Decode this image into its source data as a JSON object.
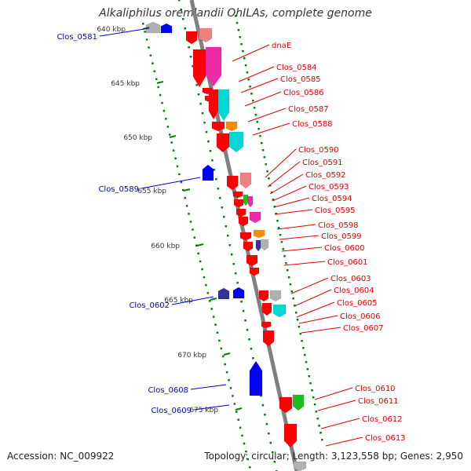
{
  "title": "Alkaliphilus oremlandii OhILAs, complete genome",
  "accession": {
    "label": "Accession:",
    "value": "NC_009922"
  },
  "topology": {
    "label": "Topology:",
    "value": "circular;"
  },
  "length": {
    "label": "Length:",
    "value": "3,123,558 bp;"
  },
  "genes": {
    "label": "Genes:",
    "value": "2,950"
  },
  "colors": {
    "backbone": "#808080",
    "scale_ticks": "#008000",
    "forward_label": "#e00000",
    "reverse_label": "#0000cc",
    "red": "#ff0000",
    "blue": "#0000ff",
    "pink": "#ee2aa6",
    "cyan": "#00d8d8",
    "orange": "#ff8c00",
    "green": "#22bb22",
    "gray": "#b0b0b0",
    "navy": "#333399",
    "salmon": "#f08080"
  },
  "scale_labels": [
    "640 kbp",
    "645 kbp",
    "650 kbp",
    "655 kbp",
    "660 kbp",
    "665 kbp",
    "670 kbp",
    "675 kbp"
  ],
  "forward_labels": [
    "dnaE",
    "Clos_0584",
    "Clos_0585",
    "Clos_0586",
    "Clos_0587",
    "Clos_0588",
    "Clos_0590",
    "Clos_0591",
    "Clos_0592",
    "Clos_0593",
    "Clos_0594",
    "Clos_0595",
    "Clos_0598",
    "Clos_0599",
    "Clos_0600",
    "Clos_0601",
    "Clos_0603",
    "Clos_0604",
    "Clos_0605",
    "Clos_0606",
    "Clos_0607",
    "Clos_0610",
    "Clos_0611",
    "Clos_0612",
    "Clos_0613"
  ],
  "reverse_labels": [
    "Clos_0581",
    "Clos_0589",
    "Clos_0602",
    "Clos_0608",
    "Clos_0609"
  ]
}
